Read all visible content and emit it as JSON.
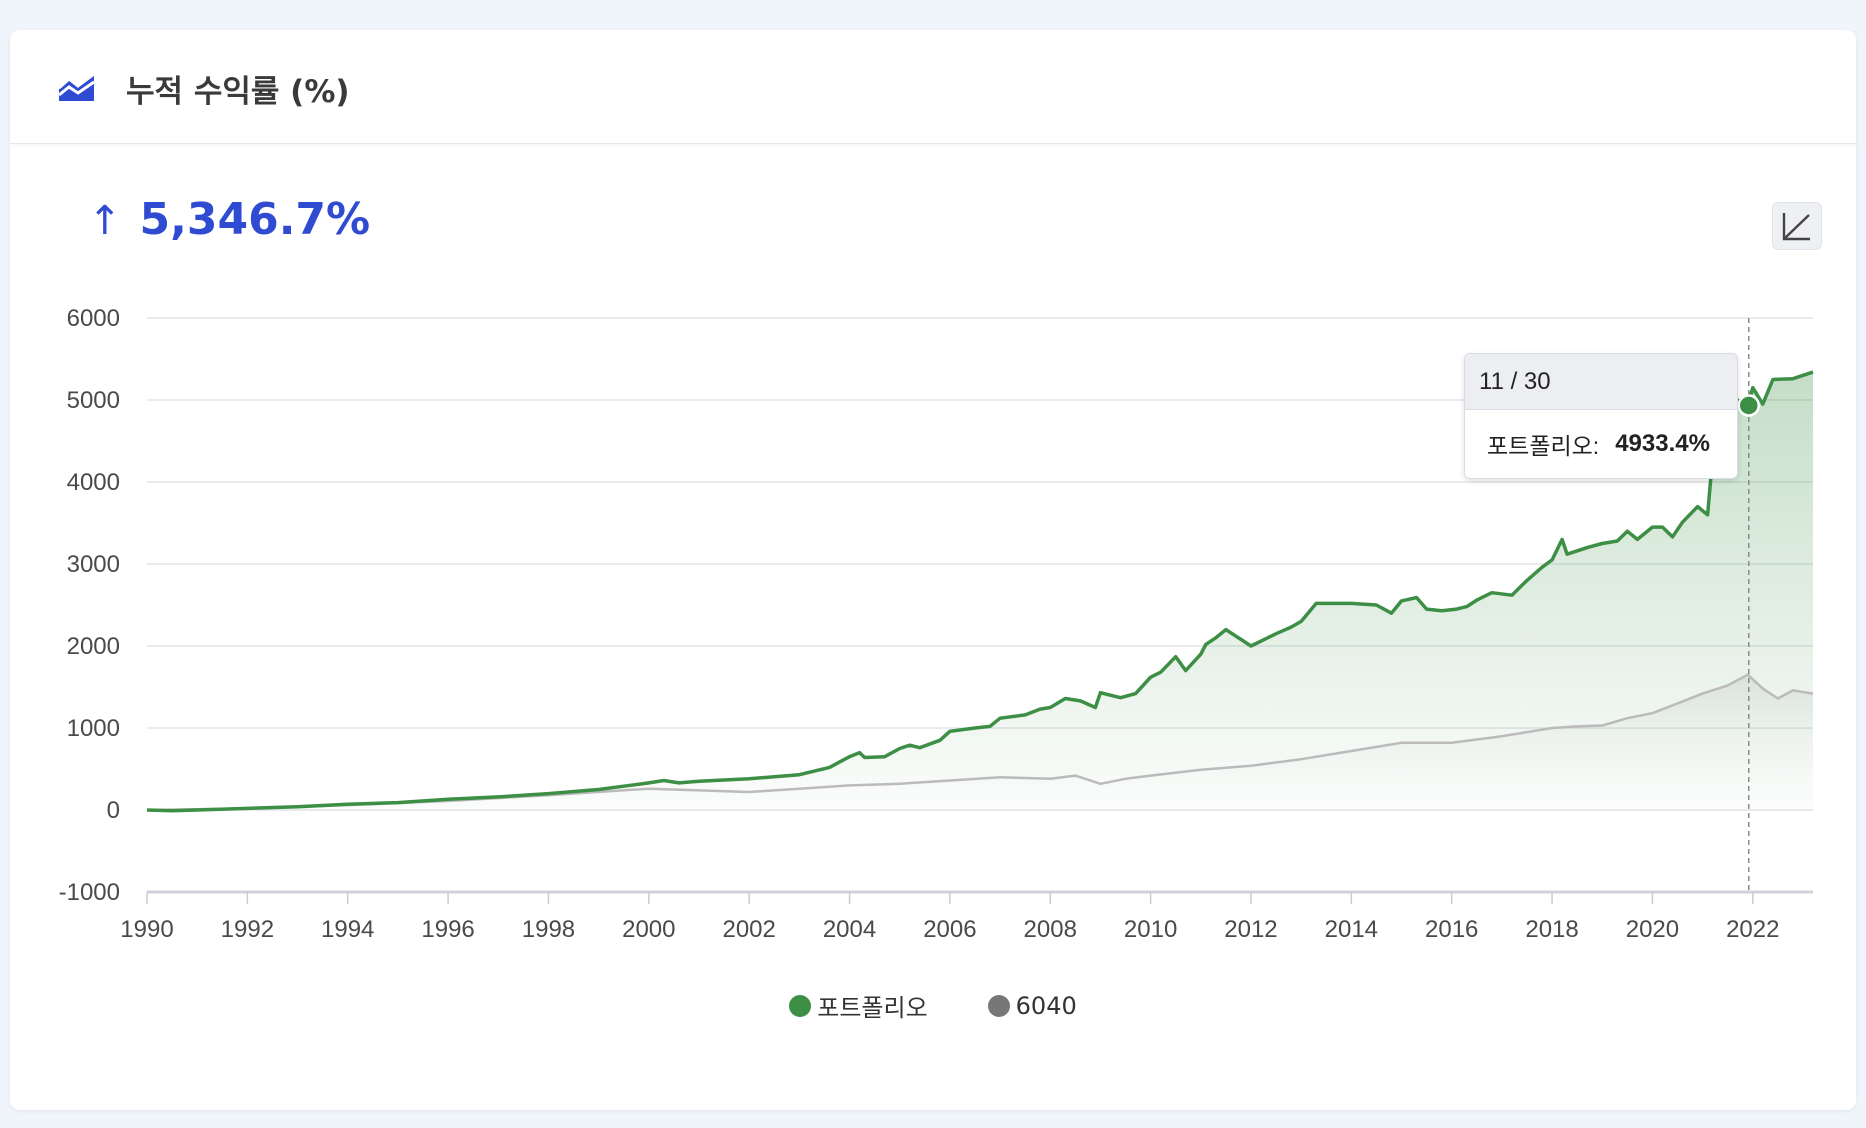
{
  "header": {
    "title": "누적 수익률 (%)",
    "icon": "area-chart-icon"
  },
  "summary": {
    "arrow": "↑",
    "value": "5,346.7%"
  },
  "controls": {
    "scale_toggle_icon": "log-scale-icon"
  },
  "tooltip": {
    "date": "11 / 30",
    "series_label": "포트폴리오:",
    "value": "4933.4%",
    "year": 2021.92,
    "y_value": 4933.4
  },
  "colors": {
    "portfolio": "#3d8f45",
    "benchmark": "#bbbbbb",
    "accent": "#2f4bd1"
  },
  "chart_data": {
    "type": "area",
    "title": "누적 수익률 (%)",
    "xlim": [
      1990,
      2023.2
    ],
    "ylim": [
      -1000,
      6000
    ],
    "x_ticks": [
      1990,
      1992,
      1994,
      1996,
      1998,
      2000,
      2002,
      2004,
      2006,
      2008,
      2010,
      2012,
      2014,
      2016,
      2018,
      2020,
      2022
    ],
    "y_ticks": [
      6000,
      5000,
      4000,
      3000,
      2000,
      1000,
      0,
      -1000
    ],
    "grid": true,
    "legend_position": "bottom-center",
    "series": [
      {
        "name": "포트폴리오",
        "color": "#3d8f45",
        "points": [
          [
            1990,
            0
          ],
          [
            1990.5,
            -10
          ],
          [
            1991,
            0
          ],
          [
            1992,
            20
          ],
          [
            1993,
            40
          ],
          [
            1994,
            70
          ],
          [
            1995,
            90
          ],
          [
            1996,
            130
          ],
          [
            1997,
            160
          ],
          [
            1998,
            200
          ],
          [
            1999,
            250
          ],
          [
            1999.5,
            290
          ],
          [
            2000,
            330
          ],
          [
            2000.3,
            360
          ],
          [
            2000.6,
            330
          ],
          [
            2001,
            350
          ],
          [
            2002,
            380
          ],
          [
            2003,
            430
          ],
          [
            2003.6,
            520
          ],
          [
            2004,
            650
          ],
          [
            2004.2,
            700
          ],
          [
            2004.3,
            640
          ],
          [
            2004.7,
            650
          ],
          [
            2005,
            750
          ],
          [
            2005.2,
            790
          ],
          [
            2005.4,
            760
          ],
          [
            2005.8,
            850
          ],
          [
            2006,
            960
          ],
          [
            2006.5,
            1000
          ],
          [
            2006.8,
            1020
          ],
          [
            2007,
            1120
          ],
          [
            2007.5,
            1160
          ],
          [
            2007.8,
            1230
          ],
          [
            2008,
            1250
          ],
          [
            2008.3,
            1360
          ],
          [
            2008.6,
            1330
          ],
          [
            2008.9,
            1250
          ],
          [
            2009,
            1430
          ],
          [
            2009.4,
            1370
          ],
          [
            2009.7,
            1420
          ],
          [
            2010,
            1620
          ],
          [
            2010.2,
            1680
          ],
          [
            2010.5,
            1870
          ],
          [
            2010.7,
            1700
          ],
          [
            2011,
            1900
          ],
          [
            2011.1,
            2020
          ],
          [
            2011.3,
            2100
          ],
          [
            2011.5,
            2200
          ],
          [
            2011.8,
            2080
          ],
          [
            2012,
            2000
          ],
          [
            2012.5,
            2150
          ],
          [
            2012.8,
            2230
          ],
          [
            2013,
            2300
          ],
          [
            2013.3,
            2520
          ],
          [
            2014,
            2520
          ],
          [
            2014.5,
            2500
          ],
          [
            2014.8,
            2400
          ],
          [
            2015,
            2550
          ],
          [
            2015.3,
            2590
          ],
          [
            2015.5,
            2450
          ],
          [
            2015.8,
            2430
          ],
          [
            2016.1,
            2450
          ],
          [
            2016.3,
            2480
          ],
          [
            2016.5,
            2560
          ],
          [
            2016.8,
            2650
          ],
          [
            2017.2,
            2620
          ],
          [
            2017.5,
            2800
          ],
          [
            2017.8,
            2960
          ],
          [
            2018,
            3050
          ],
          [
            2018.2,
            3300
          ],
          [
            2018.3,
            3120
          ],
          [
            2018.7,
            3200
          ],
          [
            2019,
            3250
          ],
          [
            2019.3,
            3280
          ],
          [
            2019.5,
            3400
          ],
          [
            2019.7,
            3300
          ],
          [
            2020,
            3450
          ],
          [
            2020.2,
            3450
          ],
          [
            2020.4,
            3330
          ],
          [
            2020.6,
            3510
          ],
          [
            2020.9,
            3700
          ],
          [
            2021.1,
            3600
          ],
          [
            2021.2,
            4300
          ],
          [
            2021.5,
            4600
          ],
          [
            2021.7,
            5000
          ],
          [
            2021.9,
            4933
          ],
          [
            2022,
            5150
          ],
          [
            2022.2,
            4950
          ],
          [
            2022.4,
            5250
          ],
          [
            2022.8,
            5260
          ],
          [
            2023.2,
            5340
          ]
        ]
      },
      {
        "name": "6040",
        "color": "#bbbbbb",
        "points": [
          [
            1990,
            0
          ],
          [
            1992,
            20
          ],
          [
            1994,
            60
          ],
          [
            1996,
            110
          ],
          [
            1998,
            180
          ],
          [
            2000,
            260
          ],
          [
            2002,
            220
          ],
          [
            2003,
            260
          ],
          [
            2004,
            300
          ],
          [
            2005,
            320
          ],
          [
            2006,
            360
          ],
          [
            2007,
            400
          ],
          [
            2008,
            380
          ],
          [
            2008.5,
            420
          ],
          [
            2009,
            320
          ],
          [
            2009.5,
            380
          ],
          [
            2010,
            420
          ],
          [
            2011,
            490
          ],
          [
            2012,
            540
          ],
          [
            2013,
            620
          ],
          [
            2014,
            720
          ],
          [
            2015,
            820
          ],
          [
            2016,
            820
          ],
          [
            2017,
            900
          ],
          [
            2018,
            1000
          ],
          [
            2018.5,
            1020
          ],
          [
            2019,
            1030
          ],
          [
            2019.5,
            1120
          ],
          [
            2020,
            1180
          ],
          [
            2020.5,
            1300
          ],
          [
            2021,
            1420
          ],
          [
            2021.5,
            1520
          ],
          [
            2021.9,
            1650
          ],
          [
            2022.2,
            1480
          ],
          [
            2022.5,
            1360
          ],
          [
            2022.8,
            1460
          ],
          [
            2023.2,
            1420
          ]
        ]
      }
    ]
  },
  "legend": {
    "portfolio_label": "포트폴리오",
    "benchmark_label": "6040"
  }
}
